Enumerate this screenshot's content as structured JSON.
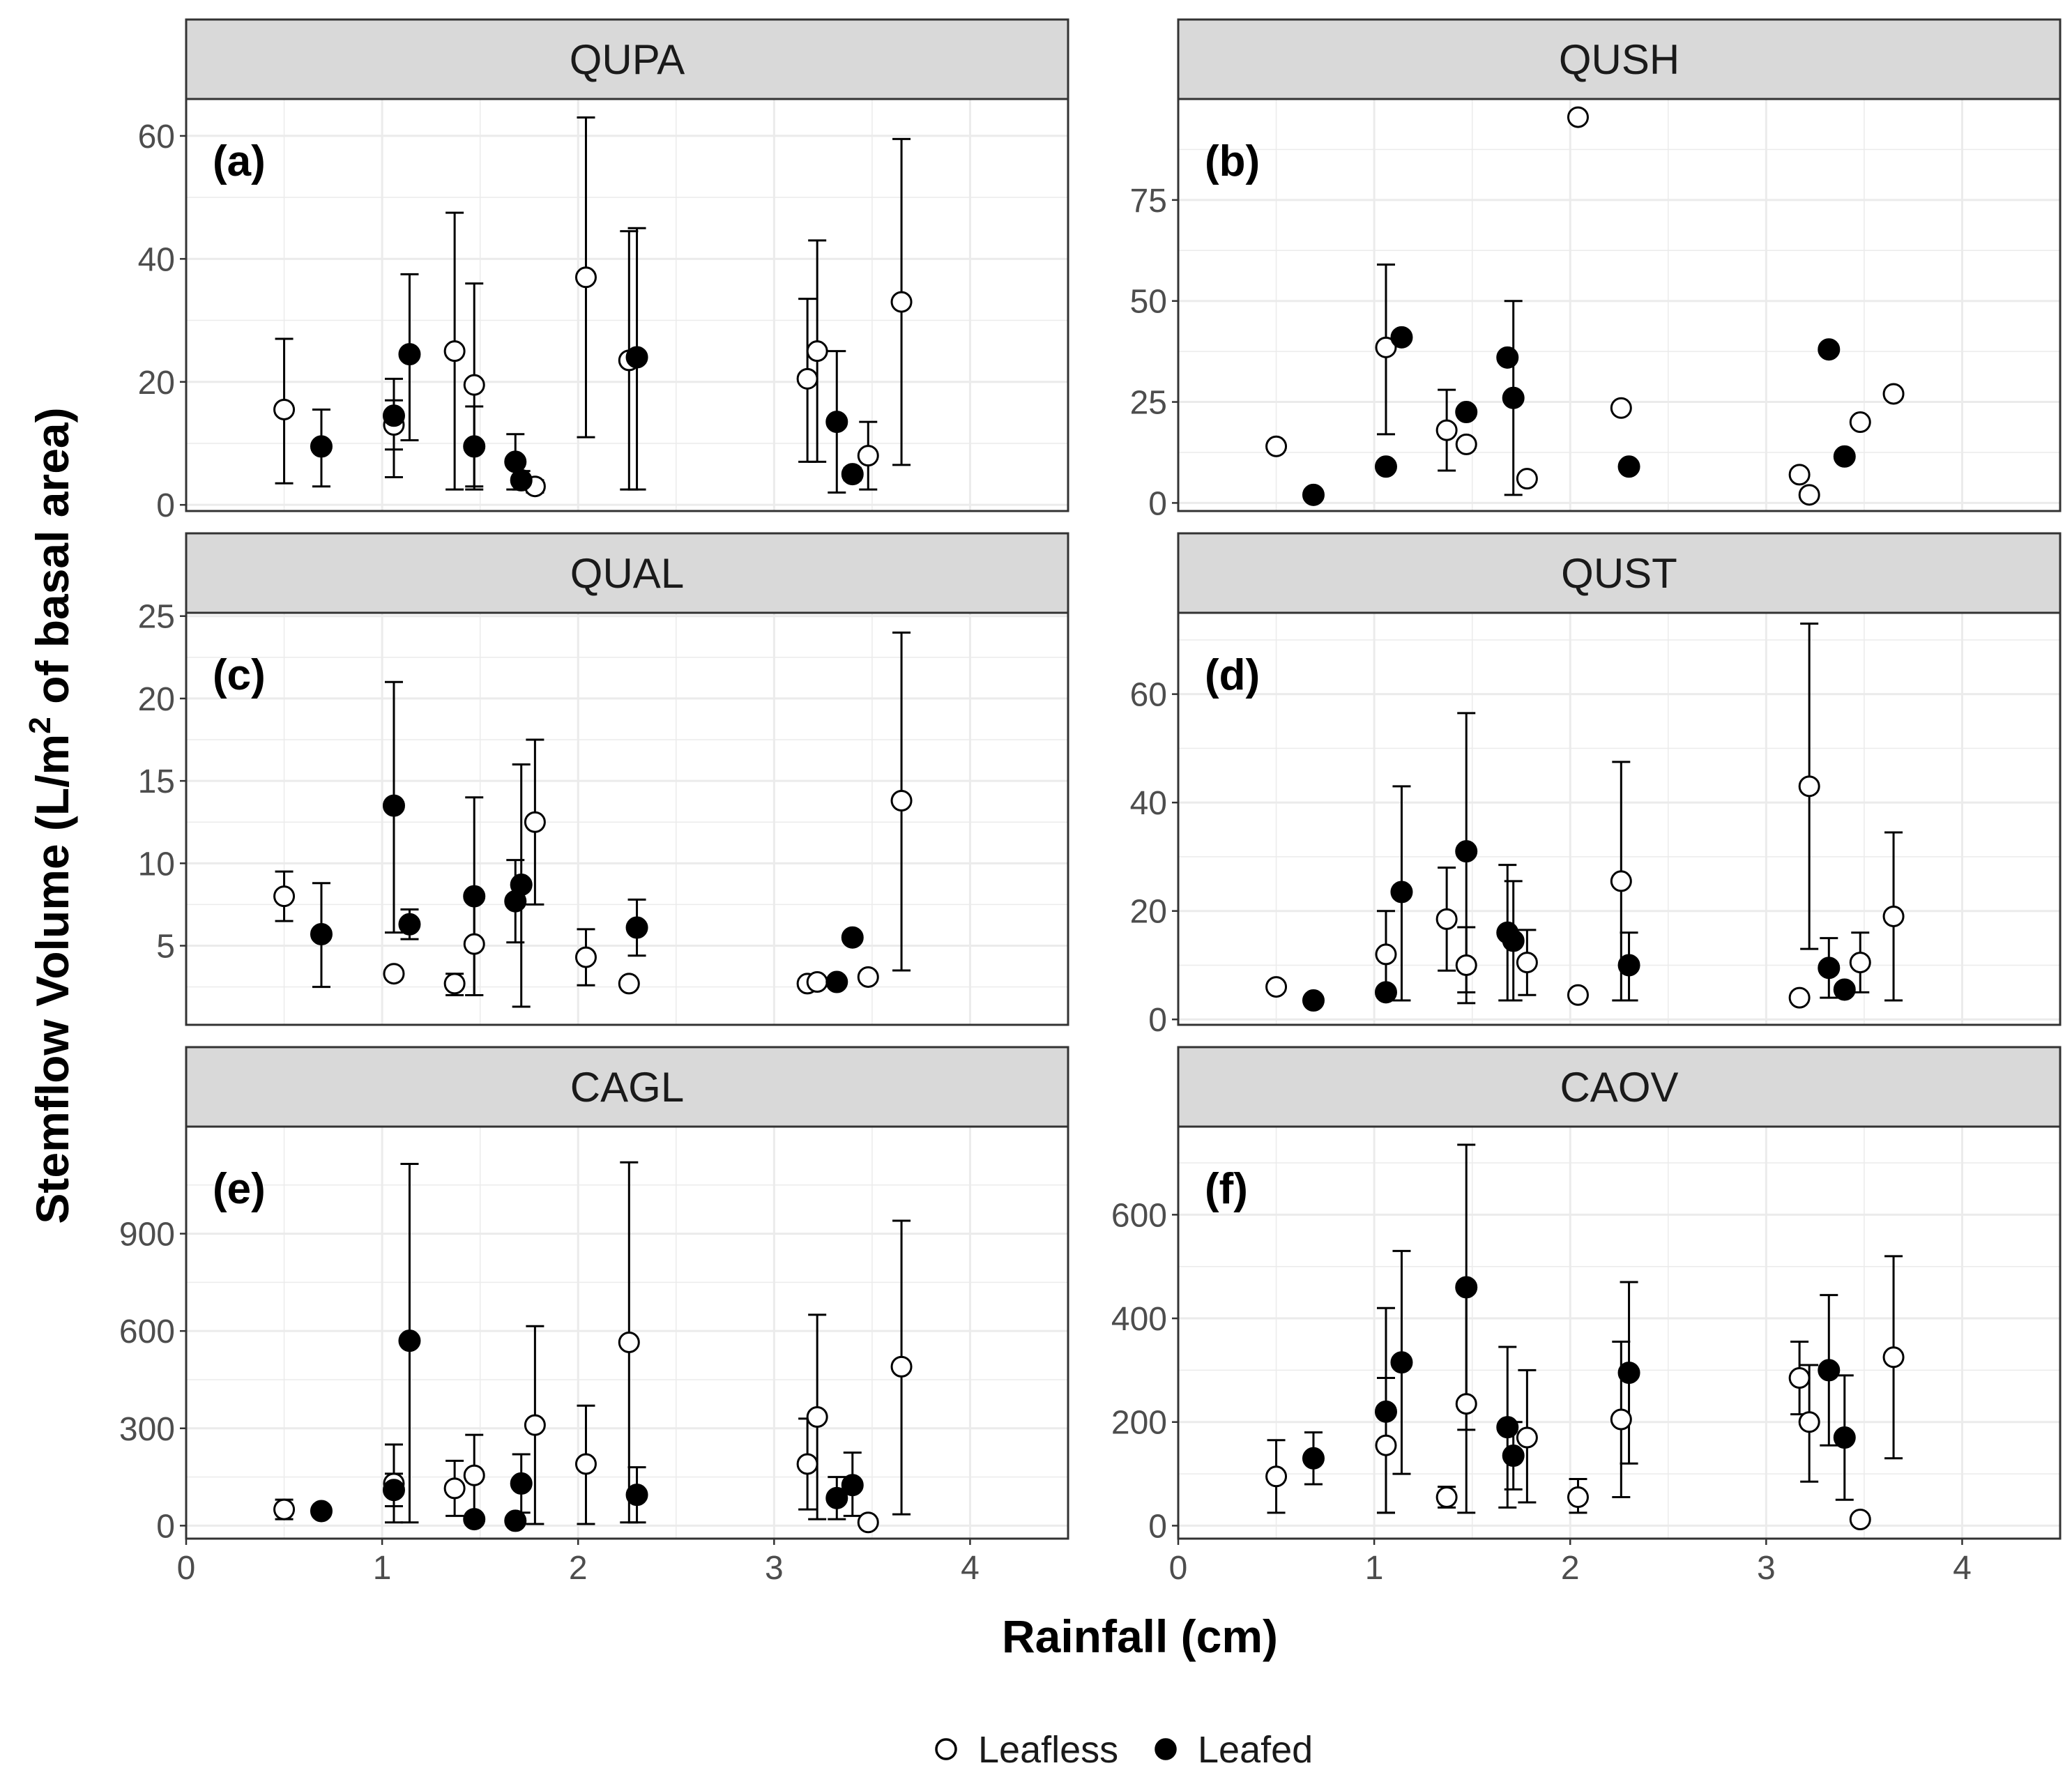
{
  "chart_data": {
    "type": "scatter",
    "xlabel": "Rainfall (cm)",
    "ylabel": {
      "main": "Stemflow Volume (L/m",
      "sup": "2",
      "tail": " of basal area)"
    },
    "xlim": [
      0,
      4.5
    ],
    "xticks": [
      "0",
      "1",
      "2",
      "3",
      "4"
    ],
    "xtick_values": [
      0,
      1,
      2,
      3,
      4
    ],
    "legend": {
      "position": "bottom",
      "entries": [
        {
          "name": "Leafless",
          "fill": "#ffffff"
        },
        {
          "name": "Leafed",
          "fill": "#000000"
        }
      ]
    },
    "colors": {
      "strip": "#d9d9d9",
      "grid": "#ebebeb",
      "frame": "#333333",
      "point": "#000000"
    },
    "panels": [
      {
        "title": "QUPA",
        "label": "(a)",
        "ylim": [
          -1,
          66
        ],
        "yticks": [
          0,
          20,
          40,
          60
        ],
        "leafless": [
          {
            "x": 0.5,
            "y": 15.5,
            "lo": 3.5,
            "hi": 27
          },
          {
            "x": 1.06,
            "y": 13,
            "lo": 4.5,
            "hi": 17
          },
          {
            "x": 1.37,
            "y": 25,
            "lo": 2.5,
            "hi": 47.5
          },
          {
            "x": 1.47,
            "y": 19.5,
            "lo": 3,
            "hi": 36
          },
          {
            "x": 1.78,
            "y": 3,
            "lo": 2,
            "hi": 4
          },
          {
            "x": 2.04,
            "y": 37,
            "lo": 11,
            "hi": 63
          },
          {
            "x": 2.26,
            "y": 23.5,
            "lo": 2.5,
            "hi": 44.5
          },
          {
            "x": 3.17,
            "y": 20.5,
            "lo": 7,
            "hi": 33.5
          },
          {
            "x": 3.22,
            "y": 25,
            "lo": 7,
            "hi": 43
          },
          {
            "x": 3.48,
            "y": 8,
            "lo": 2.5,
            "hi": 13.5
          },
          {
            "x": 3.65,
            "y": 33,
            "lo": 6.5,
            "hi": 59.5
          }
        ],
        "leafed": [
          {
            "x": 0.69,
            "y": 9.5,
            "lo": 3,
            "hi": 15.5
          },
          {
            "x": 1.06,
            "y": 14.5,
            "lo": 9,
            "hi": 20.5
          },
          {
            "x": 1.14,
            "y": 24.5,
            "lo": 10.5,
            "hi": 37.5
          },
          {
            "x": 1.47,
            "y": 9.5,
            "lo": 2.5,
            "hi": 16
          },
          {
            "x": 1.68,
            "y": 7,
            "lo": 2.5,
            "hi": 11.5
          },
          {
            "x": 1.71,
            "y": 4,
            "lo": 2.5,
            "hi": 5.5
          },
          {
            "x": 2.3,
            "y": 24,
            "lo": 2.5,
            "hi": 45
          },
          {
            "x": 3.32,
            "y": 13.5,
            "lo": 2,
            "hi": 25
          },
          {
            "x": 3.4,
            "y": 5,
            "lo": 4,
            "hi": 6
          }
        ]
      },
      {
        "title": "QUSH",
        "label": "(b)",
        "ylim": [
          -2,
          100
        ],
        "yticks": [
          0,
          25,
          50,
          75
        ],
        "leafless": [
          {
            "x": 0.5,
            "y": 14
          },
          {
            "x": 1.06,
            "y": 38.5,
            "lo": 17,
            "hi": 59
          },
          {
            "x": 1.37,
            "y": 18,
            "lo": 8,
            "hi": 28
          },
          {
            "x": 1.47,
            "y": 14.5
          },
          {
            "x": 1.78,
            "y": 6
          },
          {
            "x": 2.04,
            "y": 95.5
          },
          {
            "x": 2.26,
            "y": 23.5
          },
          {
            "x": 3.17,
            "y": 7
          },
          {
            "x": 3.22,
            "y": 2
          },
          {
            "x": 3.48,
            "y": 20
          },
          {
            "x": 3.65,
            "y": 27
          }
        ],
        "leafed": [
          {
            "x": 0.69,
            "y": 2
          },
          {
            "x": 1.06,
            "y": 9
          },
          {
            "x": 1.14,
            "y": 41
          },
          {
            "x": 1.47,
            "y": 22.5
          },
          {
            "x": 1.68,
            "y": 36
          },
          {
            "x": 1.71,
            "y": 26,
            "lo": 2,
            "hi": 50
          },
          {
            "x": 2.3,
            "y": 9
          },
          {
            "x": 3.32,
            "y": 38
          },
          {
            "x": 3.4,
            "y": 11.5
          }
        ]
      },
      {
        "title": "QUAL",
        "label": "(c)",
        "ylim": [
          0.2,
          25.2
        ],
        "yticks": [
          5,
          10,
          15,
          20,
          25
        ],
        "leafless": [
          {
            "x": 0.5,
            "y": 8,
            "lo": 6.5,
            "hi": 9.5
          },
          {
            "x": 1.06,
            "y": 3.3
          },
          {
            "x": 1.37,
            "y": 2.7,
            "lo": 2,
            "hi": 3.3
          },
          {
            "x": 1.47,
            "y": 5.1,
            "lo": 2,
            "hi": 8.3
          },
          {
            "x": 1.78,
            "y": 12.5,
            "lo": 7.5,
            "hi": 17.5
          },
          {
            "x": 2.04,
            "y": 4.3,
            "lo": 2.6,
            "hi": 6
          },
          {
            "x": 2.26,
            "y": 2.7
          },
          {
            "x": 3.17,
            "y": 2.7
          },
          {
            "x": 3.22,
            "y": 2.8
          },
          {
            "x": 3.48,
            "y": 3.1
          },
          {
            "x": 3.65,
            "y": 13.8,
            "lo": 3.5,
            "hi": 24
          }
        ],
        "leafed": [
          {
            "x": 0.69,
            "y": 5.7,
            "lo": 2.5,
            "hi": 8.8
          },
          {
            "x": 1.06,
            "y": 13.5,
            "lo": 5.8,
            "hi": 21
          },
          {
            "x": 1.14,
            "y": 6.3,
            "lo": 5.4,
            "hi": 7.2
          },
          {
            "x": 1.47,
            "y": 8,
            "lo": 2,
            "hi": 14
          },
          {
            "x": 1.68,
            "y": 7.7,
            "lo": 5.2,
            "hi": 10.2
          },
          {
            "x": 1.71,
            "y": 8.7,
            "lo": 1.3,
            "hi": 16
          },
          {
            "x": 2.3,
            "y": 6.1,
            "lo": 4.4,
            "hi": 7.8
          },
          {
            "x": 3.32,
            "y": 2.8
          },
          {
            "x": 3.4,
            "y": 5.5
          }
        ]
      },
      {
        "title": "QUST",
        "label": "(d)",
        "ylim": [
          -1,
          75
        ],
        "yticks": [
          0,
          20,
          40,
          60
        ],
        "leafless": [
          {
            "x": 0.5,
            "y": 6
          },
          {
            "x": 1.06,
            "y": 12,
            "lo": 4,
            "hi": 20
          },
          {
            "x": 1.37,
            "y": 18.5,
            "lo": 9,
            "hi": 28
          },
          {
            "x": 1.47,
            "y": 10,
            "lo": 3,
            "hi": 17
          },
          {
            "x": 1.78,
            "y": 10.5,
            "lo": 4.5,
            "hi": 16.5
          },
          {
            "x": 2.04,
            "y": 4.5
          },
          {
            "x": 2.26,
            "y": 25.5,
            "lo": 3.5,
            "hi": 47.5
          },
          {
            "x": 3.17,
            "y": 4
          },
          {
            "x": 3.22,
            "y": 43,
            "lo": 13,
            "hi": 73
          },
          {
            "x": 3.48,
            "y": 10.5,
            "lo": 5,
            "hi": 16
          },
          {
            "x": 3.65,
            "y": 19,
            "lo": 3.5,
            "hi": 34.5
          }
        ],
        "leafed": [
          {
            "x": 0.69,
            "y": 3.5
          },
          {
            "x": 1.06,
            "y": 5
          },
          {
            "x": 1.14,
            "y": 23.5,
            "lo": 3.5,
            "hi": 43
          },
          {
            "x": 1.47,
            "y": 31,
            "lo": 5,
            "hi": 56.5
          },
          {
            "x": 1.68,
            "y": 16,
            "lo": 3.5,
            "hi": 28.5
          },
          {
            "x": 1.71,
            "y": 14.5,
            "lo": 3.5,
            "hi": 25.5
          },
          {
            "x": 2.3,
            "y": 10,
            "lo": 3.5,
            "hi": 16
          },
          {
            "x": 3.32,
            "y": 9.5,
            "lo": 4,
            "hi": 15
          },
          {
            "x": 3.4,
            "y": 5.5
          }
        ]
      },
      {
        "title": "CAGL",
        "label": "(e)",
        "ylim": [
          -40,
          1230
        ],
        "yticks": [
          0,
          300,
          600,
          900
        ],
        "leafless": [
          {
            "x": 0.5,
            "y": 50,
            "lo": 20,
            "hi": 80
          },
          {
            "x": 1.06,
            "y": 130,
            "lo": 10,
            "hi": 250
          },
          {
            "x": 1.37,
            "y": 115,
            "lo": 30,
            "hi": 200
          },
          {
            "x": 1.47,
            "y": 155,
            "lo": 30,
            "hi": 280
          },
          {
            "x": 1.78,
            "y": 310,
            "lo": 5,
            "hi": 615
          },
          {
            "x": 2.04,
            "y": 190,
            "lo": 5,
            "hi": 370
          },
          {
            "x": 2.26,
            "y": 565,
            "lo": 10,
            "hi": 1120
          },
          {
            "x": 3.17,
            "y": 190,
            "lo": 50,
            "hi": 330
          },
          {
            "x": 3.22,
            "y": 335,
            "lo": 20,
            "hi": 650
          },
          {
            "x": 3.48,
            "y": 10
          },
          {
            "x": 3.65,
            "y": 490,
            "lo": 35,
            "hi": 940
          }
        ],
        "leafed": [
          {
            "x": 0.69,
            "y": 45
          },
          {
            "x": 1.06,
            "y": 110,
            "lo": 60,
            "hi": 160
          },
          {
            "x": 1.14,
            "y": 570,
            "lo": 10,
            "hi": 1115
          },
          {
            "x": 1.47,
            "y": 20
          },
          {
            "x": 1.68,
            "y": 15
          },
          {
            "x": 1.71,
            "y": 130,
            "lo": 40,
            "hi": 220
          },
          {
            "x": 2.3,
            "y": 95,
            "lo": 10,
            "hi": 180
          },
          {
            "x": 3.32,
            "y": 85,
            "lo": 20,
            "hi": 150
          },
          {
            "x": 3.4,
            "y": 125,
            "lo": 30,
            "hi": 225
          }
        ]
      },
      {
        "title": "CAOV",
        "label": "(f)",
        "ylim": [
          -25,
          770
        ],
        "yticks": [
          0,
          200,
          400,
          600
        ],
        "leafless": [
          {
            "x": 0.5,
            "y": 95,
            "lo": 25,
            "hi": 165
          },
          {
            "x": 1.06,
            "y": 155,
            "lo": 25,
            "hi": 285
          },
          {
            "x": 1.37,
            "y": 55,
            "lo": 35,
            "hi": 75
          },
          {
            "x": 1.47,
            "y": 235,
            "lo": 25,
            "hi": 450
          },
          {
            "x": 1.78,
            "y": 170,
            "lo": 45,
            "hi": 300
          },
          {
            "x": 2.04,
            "y": 55,
            "lo": 25,
            "hi": 90
          },
          {
            "x": 2.26,
            "y": 205,
            "lo": 55,
            "hi": 355
          },
          {
            "x": 3.17,
            "y": 285,
            "lo": 215,
            "hi": 355
          },
          {
            "x": 3.22,
            "y": 200,
            "lo": 85,
            "hi": 310
          },
          {
            "x": 3.48,
            "y": 12
          },
          {
            "x": 3.65,
            "y": 325,
            "lo": 130,
            "hi": 520
          }
        ],
        "leafed": [
          {
            "x": 0.69,
            "y": 130,
            "lo": 80,
            "hi": 180
          },
          {
            "x": 1.06,
            "y": 220,
            "lo": 25,
            "hi": 420
          },
          {
            "x": 1.14,
            "y": 315,
            "lo": 100,
            "hi": 530
          },
          {
            "x": 1.47,
            "y": 460,
            "lo": 185,
            "hi": 735
          },
          {
            "x": 1.68,
            "y": 190,
            "lo": 35,
            "hi": 345
          },
          {
            "x": 1.71,
            "y": 135,
            "lo": 70,
            "hi": 200
          },
          {
            "x": 2.3,
            "y": 295,
            "lo": 120,
            "hi": 470
          },
          {
            "x": 3.32,
            "y": 300,
            "lo": 155,
            "hi": 445
          },
          {
            "x": 3.4,
            "y": 170,
            "lo": 50,
            "hi": 290
          }
        ]
      }
    ]
  }
}
